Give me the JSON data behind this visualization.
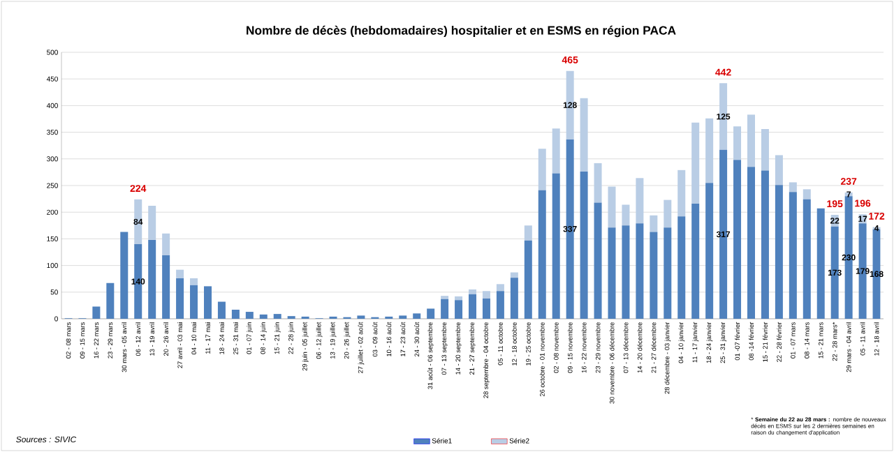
{
  "chart_data": {
    "type": "bar",
    "stacked": true,
    "title": "Nombre de décès (hebdomadaires) hospitalier et en ESMS en région PACA",
    "categories": [
      "02 - 08 mars",
      "09 - 15 mars",
      "16 - 22 mars",
      "23 - 29 mars",
      "30 mars - 05 avril",
      "06 - 12 avril",
      "13 - 19 avril",
      "20 - 26 avril",
      "27 avril - 03 mai",
      "04 - 10 mai",
      "11 - 17 mai",
      "18 - 24 mai",
      "25 - 31 mai",
      "01 - 07 juin",
      "08 - 14 juin",
      "15 - 21 juin",
      "22 - 28 juin",
      "29 juin - 05 juillet",
      "06 - 12 juillet",
      "13 - 19 juillet",
      "20 - 26 juillet",
      "27 juillet - 02 août",
      "03 - 09 août",
      "10 - 16 août",
      "17 - 23 août",
      "24 - 30 août",
      "31 août - 06 septembre",
      "07 - 13 septembre",
      "14 - 20 septembre",
      "21 - 27 septembre",
      "28 septembre - 04 octobre",
      "05 - 11 octobre",
      "12 - 18 octobre",
      "19 - 25 octobre",
      "26 octobre - 01 novembre",
      "02 - 08 novembre",
      "09 - 15 novembre",
      "16 - 22 novembre",
      "23 - 29 novembre",
      "30 novembre - 06 décembre",
      "07 - 13 décembre",
      "14 - 20 décembre",
      "21 - 27 décembre",
      "28 décembre - 03 janvier",
      "04 - 10 janvier",
      "11 - 17 janvier",
      "18 - 24 janvier",
      "25 - 31 janvier",
      "01 -07 février",
      "08 -14 février",
      "15 - 21 février",
      "22 - 28 février",
      "01 - 07 mars",
      "08 - 14 mars",
      "15 - 21 mars",
      "22 - 28 mars*",
      "29 mars - 04 avril",
      "05 - 11 avril",
      "12 - 18 avril"
    ],
    "series": [
      {
        "name": "Série1",
        "color": "#4f81bd",
        "values": [
          1,
          1,
          23,
          67,
          163,
          140,
          148,
          119,
          76,
          63,
          61,
          32,
          17,
          13,
          8,
          9,
          5,
          4,
          1,
          4,
          3,
          6,
          3,
          4,
          6,
          10,
          19,
          37,
          35,
          46,
          38,
          52,
          77,
          147,
          241,
          273,
          337,
          276,
          218,
          171,
          175,
          179,
          163,
          171,
          192,
          216,
          255,
          317,
          298,
          285,
          278,
          251,
          238,
          224,
          207,
          173,
          230,
          179,
          168
        ],
        "value_labels": [
          null,
          null,
          null,
          null,
          null,
          "140",
          null,
          null,
          null,
          null,
          null,
          null,
          null,
          null,
          null,
          null,
          null,
          null,
          null,
          null,
          null,
          null,
          null,
          null,
          null,
          null,
          null,
          null,
          null,
          null,
          null,
          null,
          null,
          null,
          null,
          null,
          "337",
          null,
          null,
          null,
          null,
          null,
          null,
          null,
          null,
          null,
          null,
          "317",
          null,
          null,
          null,
          null,
          null,
          null,
          null,
          "173",
          "230",
          "179",
          "168"
        ]
      },
      {
        "name": "Série2",
        "color": "#b9cde5",
        "values": [
          0,
          0,
          0,
          0,
          0,
          84,
          64,
          41,
          16,
          13,
          0,
          0,
          0,
          0,
          0,
          0,
          0,
          0,
          0,
          0,
          0,
          0,
          0,
          0,
          0,
          null,
          0,
          6,
          7,
          9,
          14,
          13,
          10,
          28,
          78,
          84,
          128,
          138,
          74,
          77,
          39,
          85,
          31,
          52,
          87,
          152,
          121,
          125,
          63,
          98,
          78,
          56,
          18,
          19,
          0,
          22,
          7,
          17,
          4
        ],
        "value_labels": [
          null,
          null,
          null,
          null,
          null,
          "84",
          null,
          null,
          null,
          null,
          null,
          null,
          null,
          null,
          null,
          null,
          null,
          null,
          null,
          null,
          null,
          null,
          null,
          null,
          null,
          null,
          null,
          null,
          null,
          null,
          null,
          null,
          null,
          null,
          null,
          null,
          "128",
          null,
          null,
          null,
          null,
          null,
          null,
          null,
          null,
          null,
          null,
          "125",
          null,
          null,
          null,
          null,
          null,
          null,
          null,
          "22",
          "7",
          "17",
          "4"
        ]
      }
    ],
    "totals": [
      null,
      null,
      null,
      null,
      null,
      "224",
      null,
      null,
      null,
      null,
      null,
      null,
      null,
      null,
      null,
      null,
      null,
      null,
      null,
      null,
      null,
      null,
      null,
      null,
      null,
      null,
      null,
      null,
      null,
      null,
      null,
      null,
      null,
      null,
      null,
      null,
      "465",
      null,
      null,
      null,
      null,
      null,
      null,
      null,
      null,
      null,
      null,
      "442",
      null,
      null,
      null,
      null,
      null,
      null,
      null,
      "195",
      "237",
      "196",
      "172"
    ],
    "ylim": [
      0,
      500
    ],
    "yticks": [
      0,
      50,
      100,
      150,
      200,
      250,
      300,
      350,
      400,
      450,
      500
    ],
    "grid": "y",
    "legend": "bottom",
    "annotations": [
      "*Sources : SIVIC*",
      "* **Semaine du 22 au 28 mars :** nombre de nouveaux décès en ESMS sur les 2 dernières semaines en raison du changement d'application"
    ]
  }
}
